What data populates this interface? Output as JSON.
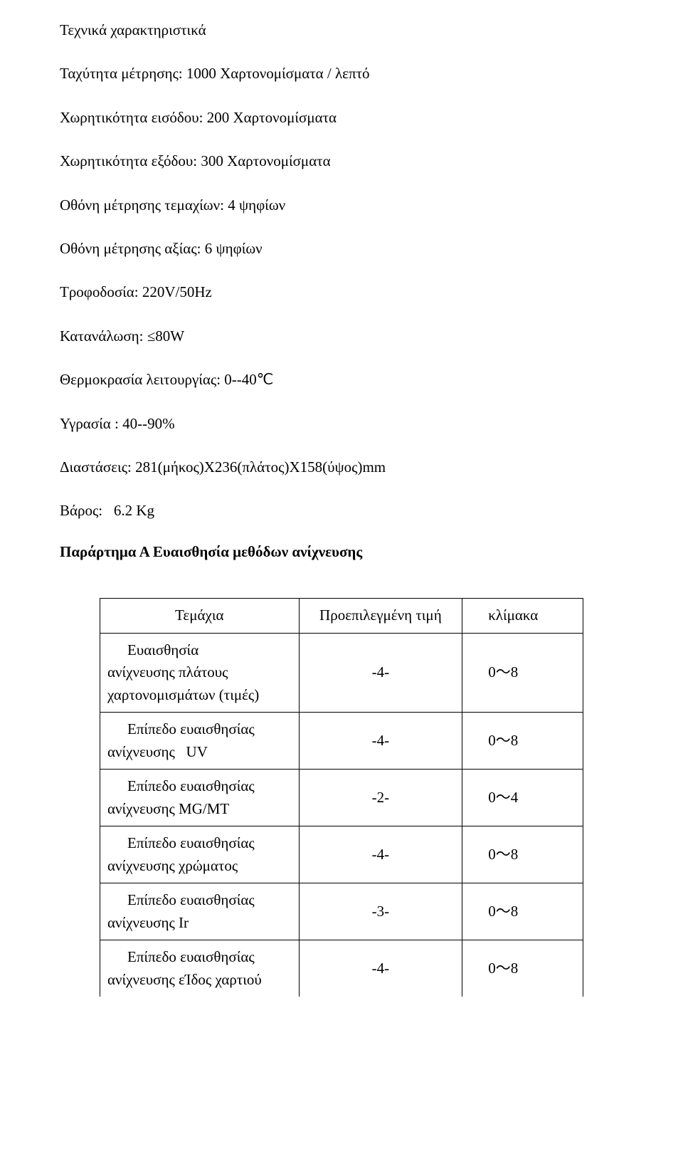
{
  "specs": {
    "title": "Τεχνικά χαρακτηριστικά",
    "lines": [
      "Ταχύτητα μέτρησης: 1000 Χαρτονομίσματα / λεπτό",
      "Χωρητικότητα εισόδου: 200 Χαρτονομίσματα",
      "Χωρητικότητα εξόδου: 300 Χαρτονομίσματα",
      "Οθόνη μέτρησης τεμαχίων: 4 ψηφίων",
      "Οθόνη μέτρησης αξίας: 6 ψηφίων",
      "Τροφοδοσία: 220V/50Hz",
      "Κατανάλωση: ≤80W",
      "Θερμοκρασία λειτουργίας: 0--40℃",
      "Υγρασία : 40--90%",
      "Διαστάσεις: 281(μήκος)X236(πλάτος)X158(ύψος)mm",
      "Βάρος:   6.2 Kg"
    ],
    "appendix_title": "Παράρτημα Α Ευαισθησία μεθόδων ανίχνευσης"
  },
  "table": {
    "header": {
      "a": "Τεμάχια",
      "b": "Προεπιλεγμένη τιμή",
      "c": "κλίμακα"
    },
    "rows": [
      {
        "a1": "Ευαισθησία",
        "a2": "ανίχνευσης πλάτους",
        "a3": "χαρτονομισμάτων (τιμές)",
        "b": "-4-",
        "c": "0～8"
      },
      {
        "a1": "Επίπεδο ευαισθησίας",
        "a2": "ανίχνευσης   UV",
        "b": "-4-",
        "c": "0～8"
      },
      {
        "a1": "Επίπεδο ευαισθησίας",
        "a2": "ανίχνευσης MG/MT",
        "b": "-2-",
        "c": "0～4"
      },
      {
        "a1": "Επίπεδο ευαισθησίας",
        "a2": "ανίχνευσης χρώματος",
        "b": "-4-",
        "c": "0～8"
      },
      {
        "a1": "Επίπεδο ευαισθησίας",
        "a2": "ανίχνευσης Ir",
        "b": "-3-",
        "c": "0～8"
      },
      {
        "a1": "Επίπεδο ευαισθησίας",
        "a2": "ανίχνευσης εΊδος χαρτιού",
        "b": "-4-",
        "c": "0～8"
      }
    ]
  }
}
